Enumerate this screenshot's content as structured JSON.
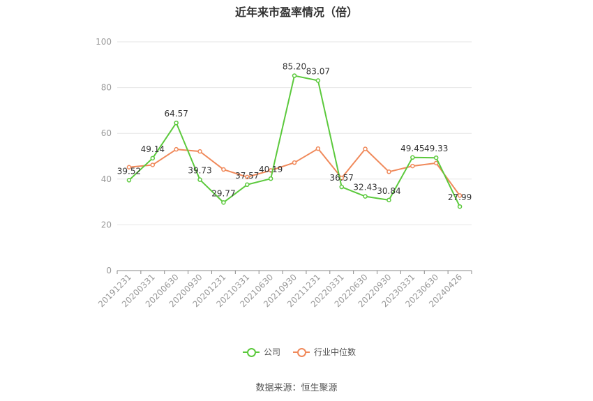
{
  "title": "近年来市盈率情况（倍）",
  "source": "数据来源：恒生聚源",
  "colors": {
    "company": "#5bc93c",
    "industry": "#f0895a",
    "axis": "#888888",
    "grid": "#e6e6e6",
    "tick_text": "#999999",
    "label_text": "#333333"
  },
  "legend": {
    "company": "公司",
    "industry": "行业中位数"
  },
  "chart_data": {
    "type": "line",
    "title": "近年来市盈率情况（倍）",
    "xlabel": "",
    "ylabel": "",
    "ylim": [
      0,
      100
    ],
    "y_ticks": [
      "0",
      "20",
      "40",
      "60",
      "80",
      "100"
    ],
    "grid": true,
    "legend_position": "bottom",
    "categories": [
      "20191231",
      "20200331",
      "20200630",
      "20200930",
      "20201231",
      "20210331",
      "20210630",
      "20210930",
      "20211231",
      "20220331",
      "20220630",
      "20220930",
      "20230331",
      "20230630",
      "20240426"
    ],
    "series": [
      {
        "name": "公司",
        "values": [
          39.52,
          49.14,
          64.57,
          39.73,
          29.77,
          37.57,
          40.19,
          85.2,
          83.07,
          36.57,
          32.43,
          30.84,
          49.45,
          49.33,
          27.99
        ],
        "labels": [
          "39.52",
          "49.14",
          "64.57",
          "39.73",
          "29.77",
          "37.57",
          "40.19",
          "85.20",
          "83.07",
          "36.57",
          "32.43",
          "30.84",
          "49.45",
          "49.33",
          "27.99"
        ]
      },
      {
        "name": "行业中位数",
        "values": [
          45.2,
          46.2,
          53.0,
          52.1,
          44.2,
          40.9,
          43.8,
          47.2,
          53.3,
          40.5,
          53.2,
          43.2,
          45.7,
          47.0,
          32.8
        ]
      }
    ]
  }
}
